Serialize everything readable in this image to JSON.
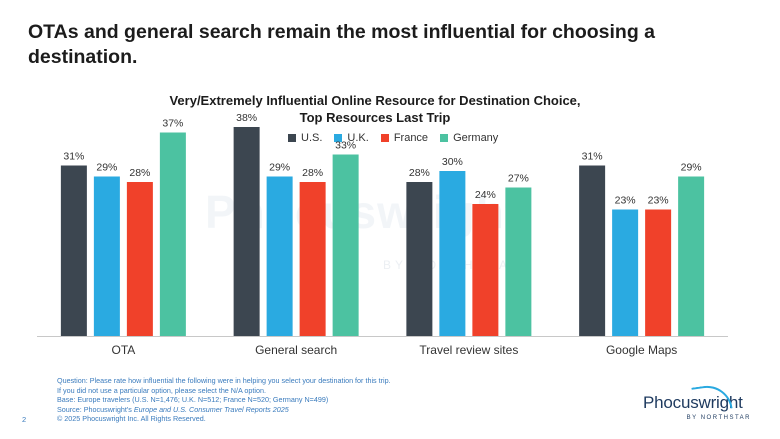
{
  "headline": "OTAs and general search remain the most influential for choosing a destination.",
  "page_number": "2",
  "watermark": {
    "main": "Phocuswright",
    "sub": "BY NORTHSTAR"
  },
  "footnote": {
    "question": "Question: Please rate how influential the following were in helping you select your destination for this trip.",
    "instruction": "If you did not use a particular option, please select the N/A option.",
    "base": "Base: Europe travelers (U.S. N=1,476; U.K. N=512; France N=520; Germany N=499)",
    "source_prefix": "Source: Phocuswright's ",
    "source_title": "Europe and U.S. Consumer Travel Reports 2025",
    "copyright": "© 2025 Phocuswright Inc. All Rights Reserved."
  },
  "logo": {
    "name": "Phocuswright",
    "tagline": "BY NORTHSTAR"
  },
  "colors": {
    "U.S.": "#3c4650",
    "U.K.": "#2aaae1",
    "France": "#f0412a",
    "Germany": "#4cc2a1"
  },
  "chart_data": {
    "type": "bar",
    "title_line1": "Very/Extremely Influential Online Resource for Destination Choice,",
    "title_line2": "Top Resources Last Trip",
    "categories": [
      "OTA",
      "General search",
      "Travel review sites",
      "Google Maps"
    ],
    "series": [
      {
        "name": "U.S.",
        "values": [
          31,
          38,
          28,
          31
        ]
      },
      {
        "name": "U.K.",
        "values": [
          29,
          29,
          30,
          23
        ]
      },
      {
        "name": "France",
        "values": [
          28,
          28,
          24,
          23
        ]
      },
      {
        "name": "Germany",
        "values": [
          37,
          33,
          27,
          29
        ]
      }
    ],
    "value_suffix": "%",
    "ylim": [
      0,
      40
    ],
    "grid": false,
    "legend_position": "top-center"
  }
}
